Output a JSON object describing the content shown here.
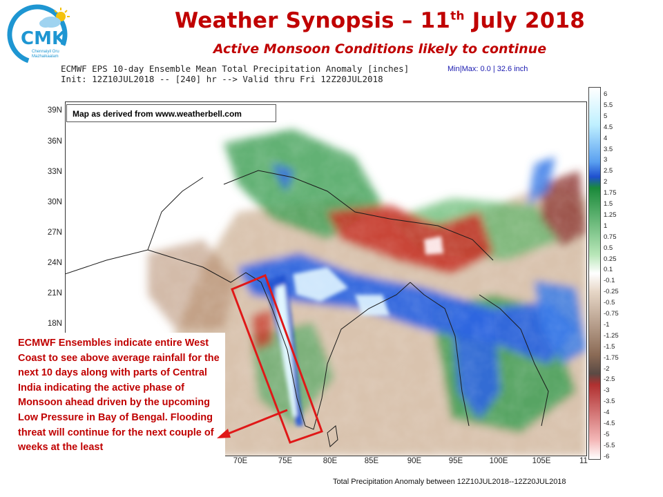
{
  "header": {
    "title_main": "Weather Synopsis – 11",
    "title_sup": "th",
    "title_end": " July 2018",
    "subtitle": "Active Monsoon Conditions likely to continue"
  },
  "logo": {
    "text": "CMK",
    "tagline_1": "Chennaiyil Oru",
    "tagline_2": "Mazhaikaalam"
  },
  "model": {
    "line1": "ECMWF EPS 10-day Ensemble Mean Total Precipitation Anomaly [inches]",
    "minmax": "Min|Max: 0.0 | 32.6 inch",
    "line2": "Init: 12Z10JUL2018 -- [240] hr --> Valid thru Fri 12Z20JUL2018"
  },
  "map": {
    "credit": "Map as derived from www.weatherbell.com",
    "lat_labels": [
      "39N",
      "36N",
      "33N",
      "30N",
      "27N",
      "24N",
      "21N",
      "18N"
    ],
    "lon_labels": [
      "70E",
      "75E",
      "80E",
      "85E",
      "90E",
      "95E",
      "100E",
      "105E",
      "11"
    ],
    "highlight": "West Coast of India",
    "colors": {
      "positive_max": "#e8ffff",
      "positive_mid": "#2f66e0",
      "neutral": "#ffffff",
      "negative_mid": "#c8392b",
      "wet": "#2e9a4a"
    }
  },
  "callout": {
    "text": "ECMWF Ensembles indicate entire West Coast to see above average rainfall for the next 10 days along with parts of Central India indicating the active phase of Monsoon ahead driven by the upcoming Low Pressure in Bay of Bengal.  Flooding threat will continue for the next couple of weeks at the least",
    "color": "#c00000"
  },
  "colorbar": {
    "labels": [
      "6",
      "5.5",
      "5",
      "4.5",
      "4",
      "3.5",
      "3",
      "2.5",
      "2",
      "1.75",
      "1.5",
      "1.25",
      "1",
      "0.75",
      "0.5",
      "0.25",
      "0.1",
      "-0.1",
      "-0.25",
      "-0.5",
      "-0.75",
      "-1",
      "-1.25",
      "-1.5",
      "-1.75",
      "-2",
      "-2.5",
      "-3",
      "-3.5",
      "-4",
      "-4.5",
      "-5",
      "-5.5",
      "-6"
    ]
  },
  "footer": "Total Precipitation Anomaly between 12Z10JUL2018--12Z20JUL2018"
}
